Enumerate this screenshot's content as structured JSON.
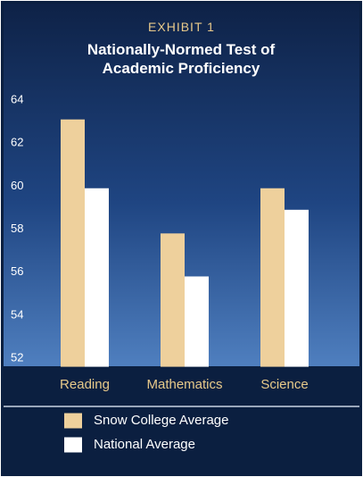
{
  "chart_data": {
    "type": "bar",
    "subtitle": "EXHIBIT 1",
    "title": "Nationally-Normed Test of Academic Proficiency",
    "categories": [
      "Reading",
      "Mathematics",
      "Science"
    ],
    "series": [
      {
        "name": "Snow College Average",
        "color": "#eed09c",
        "values": [
          63.1,
          57.8,
          59.9
        ]
      },
      {
        "name": "National Average",
        "color": "#ffffff",
        "values": [
          59.9,
          55.8,
          58.9
        ]
      }
    ],
    "ylim": [
      51.6,
      64.4
    ],
    "yticks": [
      52,
      54,
      56,
      58,
      60,
      62,
      64
    ],
    "grid": false
  }
}
